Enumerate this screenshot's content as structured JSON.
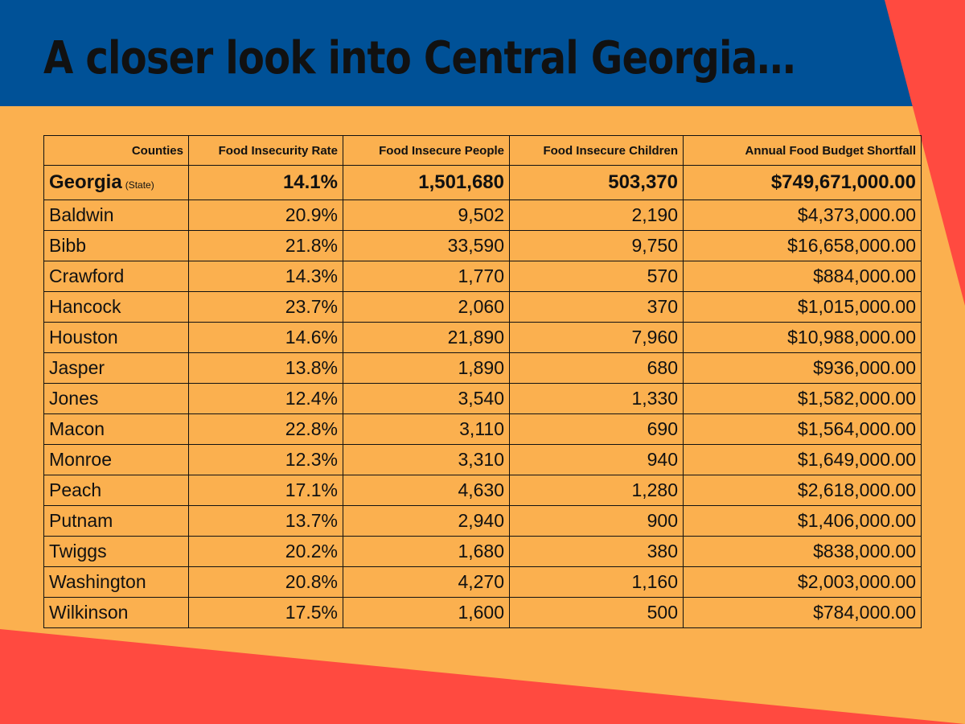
{
  "title": "A closer look into Central Georgia…",
  "colors": {
    "background": "#FBB04F",
    "title_band": "#005197",
    "accent_red": "#FF4A40",
    "text": "#111111"
  },
  "table": {
    "headers": {
      "county": "Counties",
      "rate": "Food Insecurity Rate",
      "people": "Food Insecure People",
      "children": "Food Insecure Children",
      "shortfall": "Annual Food Budget Shortfall"
    },
    "state": {
      "county": "Georgia",
      "note": "(State)",
      "rate": "14.1%",
      "people": "1,501,680",
      "children": "503,370",
      "shortfall": "$749,671,000.00"
    },
    "rows": [
      {
        "county": "Baldwin",
        "rate": "20.9%",
        "people": "9,502",
        "children": "2,190",
        "shortfall": "$4,373,000.00"
      },
      {
        "county": "Bibb",
        "rate": "21.8%",
        "people": "33,590",
        "children": "9,750",
        "shortfall": "$16,658,000.00"
      },
      {
        "county": "Crawford",
        "rate": "14.3%",
        "people": "1,770",
        "children": "570",
        "shortfall": "$884,000.00"
      },
      {
        "county": "Hancock",
        "rate": "23.7%",
        "people": "2,060",
        "children": "370",
        "shortfall": "$1,015,000.00"
      },
      {
        "county": "Houston",
        "rate": "14.6%",
        "people": "21,890",
        "children": "7,960",
        "shortfall": "$10,988,000.00"
      },
      {
        "county": "Jasper",
        "rate": "13.8%",
        "people": "1,890",
        "children": "680",
        "shortfall": "$936,000.00"
      },
      {
        "county": "Jones",
        "rate": "12.4%",
        "people": "3,540",
        "children": "1,330",
        "shortfall": "$1,582,000.00"
      },
      {
        "county": "Macon",
        "rate": "22.8%",
        "people": "3,110",
        "children": "690",
        "shortfall": "$1,564,000.00"
      },
      {
        "county": "Monroe",
        "rate": "12.3%",
        "people": "3,310",
        "children": "940",
        "shortfall": "$1,649,000.00"
      },
      {
        "county": "Peach",
        "rate": "17.1%",
        "people": "4,630",
        "children": "1,280",
        "shortfall": "$2,618,000.00"
      },
      {
        "county": "Putnam",
        "rate": "13.7%",
        "people": "2,940",
        "children": "900",
        "shortfall": "$1,406,000.00"
      },
      {
        "county": "Twiggs",
        "rate": "20.2%",
        "people": "1,680",
        "children": "380",
        "shortfall": "$838,000.00"
      },
      {
        "county": "Washington",
        "rate": "20.8%",
        "people": "4,270",
        "children": "1,160",
        "shortfall": "$2,003,000.00"
      },
      {
        "county": "Wilkinson",
        "rate": "17.5%",
        "people": "1,600",
        "children": "500",
        "shortfall": "$784,000.00"
      }
    ]
  }
}
